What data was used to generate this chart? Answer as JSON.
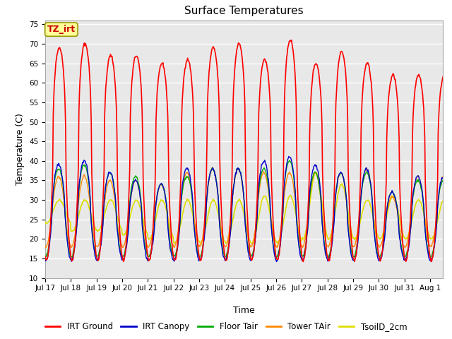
{
  "title": "Surface Temperatures",
  "xlabel": "Time",
  "ylabel": "Temperature (C)",
  "ylim": [
    10,
    76
  ],
  "yticks": [
    10,
    15,
    20,
    25,
    30,
    35,
    40,
    45,
    50,
    55,
    60,
    65,
    70,
    75
  ],
  "xtick_labels": [
    "Jul 17",
    "Jul 18",
    "Jul 19",
    "Jul 20",
    "Jul 21",
    "Jul 22",
    "Jul 23",
    "Jul 24",
    "Jul 25",
    "Jul 26",
    "Jul 27",
    "Jul 28",
    "Jul 29",
    "Jul 30",
    "Jul 31",
    "Aug 1"
  ],
  "annotation_text": "TZ_irt",
  "annotation_color": "#cc0000",
  "annotation_bg": "#ffff99",
  "annotation_border": "#999900",
  "series": {
    "IRT Ground": {
      "color": "#ff0000",
      "lw": 1.2
    },
    "IRT Canopy": {
      "color": "#0000cc",
      "lw": 1.0
    },
    "Floor Tair": {
      "color": "#00aa00",
      "lw": 1.0
    },
    "Tower TAir": {
      "color": "#ff8800",
      "lw": 1.0
    },
    "TsoilD_2cm": {
      "color": "#dddd00",
      "lw": 1.2
    }
  },
  "bg_color": "#e8e8e8",
  "grid_color": "#ffffff",
  "fig_bg_color": "#ffffff",
  "title_fontsize": 11,
  "axis_label_fontsize": 9,
  "tick_fontsize": 7.5,
  "legend_fontsize": 8.5
}
